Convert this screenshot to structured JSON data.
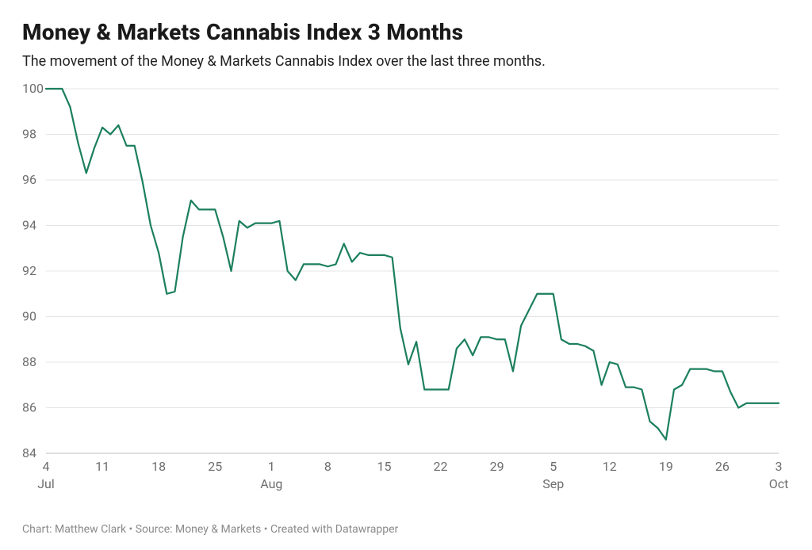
{
  "title": "Money & Markets Cannabis Index 3 Months",
  "subtitle": "The movement of the Money & Markets Cannabis Index over the last three months.",
  "footer": "Chart: Matthew Clark • Source: Money & Markets • Created with Datawrapper",
  "chart": {
    "type": "line",
    "background_color": "#ffffff",
    "grid_color": "#e4e4e4",
    "axis_text_color": "#6e6e6e",
    "line_color": "#1c7f5f",
    "line_width": 2.2,
    "title_fontsize": 28,
    "subtitle_fontsize": 18,
    "label_fontsize": 16,
    "ylim": [
      84,
      100
    ],
    "ytick_step": 2,
    "yticks": [
      84,
      86,
      88,
      90,
      92,
      94,
      96,
      98,
      100
    ],
    "xrange_days": [
      0,
      91
    ],
    "xticks": [
      {
        "day": 0,
        "label": "4"
      },
      {
        "day": 7,
        "label": "11"
      },
      {
        "day": 14,
        "label": "18"
      },
      {
        "day": 21,
        "label": "25"
      },
      {
        "day": 28,
        "label": "1"
      },
      {
        "day": 35,
        "label": "8"
      },
      {
        "day": 42,
        "label": "15"
      },
      {
        "day": 49,
        "label": "22"
      },
      {
        "day": 56,
        "label": "29"
      },
      {
        "day": 63,
        "label": "5"
      },
      {
        "day": 70,
        "label": "12"
      },
      {
        "day": 77,
        "label": "19"
      },
      {
        "day": 84,
        "label": "26"
      },
      {
        "day": 91,
        "label": "3"
      }
    ],
    "x_month_labels": [
      {
        "day": 0,
        "label": "Jul"
      },
      {
        "day": 28,
        "label": "Aug"
      },
      {
        "day": 63,
        "label": "Sep"
      },
      {
        "day": 91,
        "label": "Oct"
      }
    ],
    "series": [
      {
        "name": "Cannabis Index",
        "values": [
          [
            0,
            100.0
          ],
          [
            1,
            100.0
          ],
          [
            2,
            100.0
          ],
          [
            3,
            99.2
          ],
          [
            4,
            97.6
          ],
          [
            5,
            96.3
          ],
          [
            6,
            97.4
          ],
          [
            7,
            98.3
          ],
          [
            8,
            98.0
          ],
          [
            9,
            98.4
          ],
          [
            10,
            97.5
          ],
          [
            11,
            97.5
          ],
          [
            12,
            95.9
          ],
          [
            13,
            94.0
          ],
          [
            14,
            92.8
          ],
          [
            15,
            91.0
          ],
          [
            16,
            91.1
          ],
          [
            17,
            93.5
          ],
          [
            18,
            95.1
          ],
          [
            19,
            94.7
          ],
          [
            20,
            94.7
          ],
          [
            21,
            94.7
          ],
          [
            22,
            93.5
          ],
          [
            23,
            92.0
          ],
          [
            24,
            94.2
          ],
          [
            25,
            93.9
          ],
          [
            26,
            94.1
          ],
          [
            27,
            94.1
          ],
          [
            28,
            94.1
          ],
          [
            29,
            94.2
          ],
          [
            30,
            92.0
          ],
          [
            31,
            91.6
          ],
          [
            32,
            92.3
          ],
          [
            33,
            92.3
          ],
          [
            34,
            92.3
          ],
          [
            35,
            92.2
          ],
          [
            36,
            92.3
          ],
          [
            37,
            93.2
          ],
          [
            38,
            92.4
          ],
          [
            39,
            92.8
          ],
          [
            40,
            92.7
          ],
          [
            41,
            92.7
          ],
          [
            42,
            92.7
          ],
          [
            43,
            92.6
          ],
          [
            44,
            89.5
          ],
          [
            45,
            87.9
          ],
          [
            46,
            88.9
          ],
          [
            47,
            86.8
          ],
          [
            48,
            86.8
          ],
          [
            49,
            86.8
          ],
          [
            50,
            86.8
          ],
          [
            51,
            88.6
          ],
          [
            52,
            89.0
          ],
          [
            53,
            88.3
          ],
          [
            54,
            89.1
          ],
          [
            55,
            89.1
          ],
          [
            56,
            89.0
          ],
          [
            57,
            89.0
          ],
          [
            58,
            87.6
          ],
          [
            59,
            89.6
          ],
          [
            60,
            90.3
          ],
          [
            61,
            91.0
          ],
          [
            62,
            91.0
          ],
          [
            63,
            91.0
          ],
          [
            64,
            89.0
          ],
          [
            65,
            88.8
          ],
          [
            66,
            88.8
          ],
          [
            67,
            88.7
          ],
          [
            68,
            88.5
          ],
          [
            69,
            87.0
          ],
          [
            70,
            88.0
          ],
          [
            71,
            87.9
          ],
          [
            72,
            86.9
          ],
          [
            73,
            86.9
          ],
          [
            74,
            86.8
          ],
          [
            75,
            85.4
          ],
          [
            76,
            85.1
          ],
          [
            77,
            84.6
          ],
          [
            78,
            86.8
          ],
          [
            79,
            87.0
          ],
          [
            80,
            87.7
          ],
          [
            81,
            87.7
          ],
          [
            82,
            87.7
          ],
          [
            83,
            87.6
          ],
          [
            84,
            87.6
          ],
          [
            85,
            86.7
          ],
          [
            86,
            86.0
          ],
          [
            87,
            86.2
          ],
          [
            88,
            86.2
          ],
          [
            89,
            86.2
          ],
          [
            90,
            86.2
          ],
          [
            91,
            86.2
          ]
        ]
      }
    ]
  }
}
